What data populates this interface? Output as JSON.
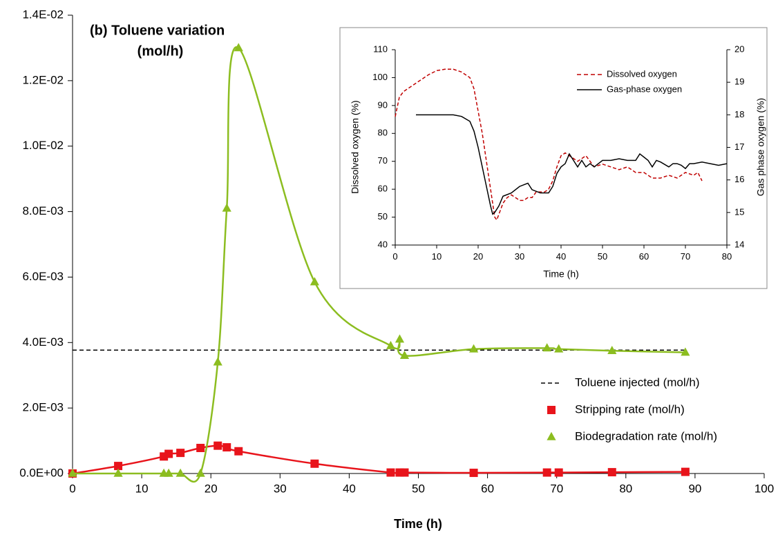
{
  "chart_data": [
    {
      "type": "line",
      "title": [
        "(b) Toluene variation",
        "(mol/h)"
      ],
      "xlabel": "Time (h)",
      "xlim": [
        0,
        100
      ],
      "xticks": [
        0,
        10,
        20,
        30,
        40,
        50,
        60,
        70,
        80,
        90,
        100
      ],
      "ylim": [
        0,
        0.014
      ],
      "yticks": [
        {
          "value": 0,
          "label": "0.0E+00"
        },
        {
          "value": 0.002,
          "label": "2.0E-03"
        },
        {
          "value": 0.004,
          "label": "4.0E-03"
        },
        {
          "value": 0.006,
          "label": "6.0E-03"
        },
        {
          "value": 0.008,
          "label": "8.0E-03"
        },
        {
          "value": 0.01,
          "label": "1.0E-02"
        },
        {
          "value": 0.012,
          "label": "1.2E-02"
        },
        {
          "value": 0.014,
          "label": "1.4E-02"
        }
      ],
      "smooth": true,
      "legend": "lower right",
      "series": [
        {
          "name": "Toluene injected (mol/h)",
          "color": "#000000",
          "dashed": true,
          "marker": "none",
          "x": [
            0,
            88.6
          ],
          "values": [
            0.00377,
            0.00377
          ]
        },
        {
          "name": "Stripping rate (mol/h)",
          "color": "#e8141b",
          "dashed": false,
          "marker": "square",
          "x": [
            0,
            6.6,
            13.2,
            13.9,
            15.6,
            18.5,
            21,
            22.3,
            24,
            35,
            46,
            47.3,
            48,
            58,
            68.6,
            70.3,
            78,
            88.6
          ],
          "values": [
            0,
            0.00023,
            0.00052,
            0.0006,
            0.00063,
            0.00078,
            0.00085,
            0.0008,
            0.00068,
            0.0003,
            3e-05,
            3e-05,
            3e-05,
            2e-05,
            3e-05,
            3e-05,
            4e-05,
            5e-05
          ]
        },
        {
          "name": "Biodegradation rate (mol/h)",
          "color": "#8cbd20",
          "dashed": false,
          "marker": "triangle",
          "x": [
            0,
            6.6,
            13.2,
            13.9,
            15.6,
            18.5,
            21,
            22.3,
            24,
            35,
            46,
            47.3,
            48,
            58,
            68.6,
            70.3,
            78,
            88.6
          ],
          "values": [
            0,
            0,
            0,
            0,
            0,
            0,
            0.0034,
            0.0081,
            0.013,
            0.00585,
            0.0039,
            0.0041,
            0.0036,
            0.0038,
            0.00383,
            0.0038,
            0.00375,
            0.0037
          ]
        }
      ]
    },
    {
      "type": "line",
      "xlabel": "Time (h)",
      "ylabel": "Dissolved oxygen (%)",
      "y2label": "Gas phase oxygen (%)",
      "xlim": [
        0,
        80
      ],
      "xticks": [
        0,
        10,
        20,
        30,
        40,
        50,
        60,
        70,
        80
      ],
      "ylim": [
        40,
        110
      ],
      "yticks": [
        40,
        50,
        60,
        70,
        80,
        90,
        100,
        110
      ],
      "y2lim": [
        14,
        20
      ],
      "y2ticks": [
        14,
        15,
        16,
        17,
        18,
        19,
        20
      ],
      "smooth": false,
      "legend": "upper center",
      "series": [
        {
          "name": "Dissolved oxygen",
          "color": "#c00000",
          "dashed": true,
          "marker": "none",
          "x": [
            0,
            1,
            2,
            4,
            6,
            8,
            10,
            12,
            14,
            16,
            18,
            19,
            20,
            21,
            22,
            23,
            24,
            24.5,
            25,
            26,
            27,
            28,
            29,
            30,
            31,
            32,
            33,
            34,
            36,
            37,
            38,
            39,
            40,
            41,
            42,
            43,
            44,
            46,
            47,
            48,
            50,
            52,
            54,
            56,
            58,
            60,
            62,
            64,
            66,
            68,
            70,
            72,
            73,
            74
          ],
          "values": [
            86,
            93,
            95,
            97,
            99,
            101,
            102.5,
            103,
            103,
            102,
            100,
            96,
            88,
            80,
            70,
            60,
            50,
            49,
            51,
            55,
            57,
            58,
            57,
            56,
            56,
            57,
            57,
            59,
            59,
            60,
            63,
            68,
            72,
            73,
            72,
            71,
            70,
            72,
            70,
            68,
            69,
            68,
            67,
            68,
            66,
            66,
            64,
            64,
            65,
            64,
            66,
            65,
            66,
            63
          ]
        },
        {
          "name": "Gas-phase oxygen",
          "color": "#000000",
          "dashed": false,
          "marker": "none",
          "axis": "y2",
          "x": [
            5,
            8,
            10,
            14,
            16,
            18,
            19,
            20,
            21,
            22,
            23,
            23.5,
            24,
            25,
            26,
            28,
            30,
            32,
            33,
            35,
            37,
            38,
            39,
            40,
            41,
            42,
            43,
            44,
            45,
            46,
            47,
            48,
            50,
            52,
            54,
            56,
            58,
            59,
            60,
            61,
            62,
            63,
            64,
            66,
            67,
            68,
            69,
            70,
            71,
            72,
            74,
            76,
            78,
            80
          ],
          "values": [
            18.0,
            18.0,
            18.0,
            18.0,
            17.95,
            17.8,
            17.5,
            17.0,
            16.4,
            15.8,
            15.2,
            14.95,
            15.0,
            15.2,
            15.5,
            15.6,
            15.8,
            15.9,
            15.7,
            15.6,
            15.6,
            15.8,
            16.2,
            16.4,
            16.5,
            16.8,
            16.6,
            16.4,
            16.6,
            16.4,
            16.5,
            16.4,
            16.6,
            16.6,
            16.65,
            16.6,
            16.6,
            16.8,
            16.7,
            16.6,
            16.4,
            16.6,
            16.55,
            16.4,
            16.5,
            16.5,
            16.45,
            16.35,
            16.5,
            16.5,
            16.55,
            16.5,
            16.45,
            16.5
          ]
        }
      ]
    }
  ]
}
